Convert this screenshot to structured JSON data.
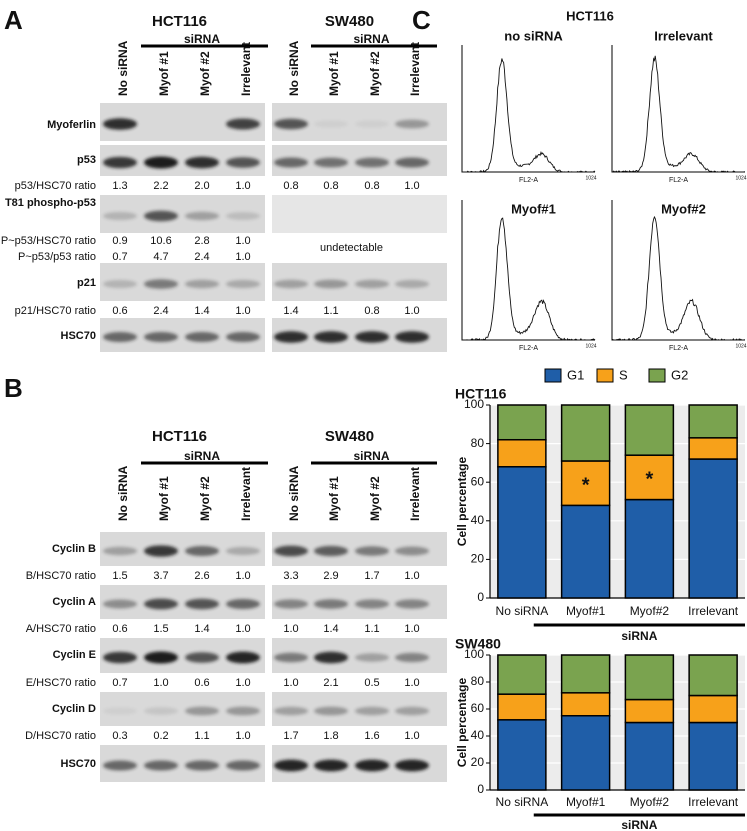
{
  "panel_a": {
    "letter": "A",
    "cell_lines": [
      "HCT116",
      "SW480"
    ],
    "group": "siRNA",
    "lanes": [
      "No siRNA",
      "Myof #1",
      "Myof #2",
      "Irrelevant"
    ],
    "blots": [
      "Myoferlin",
      "p53",
      "T81 phospho-p53",
      "p21",
      "HSC70"
    ],
    "ratios": [
      {
        "label": "p53/HSC70 ratio",
        "values": [
          [
            "1.3",
            "2.2",
            "2.0",
            "1.0"
          ],
          [
            "0.8",
            "0.8",
            "0.8",
            "1.0"
          ]
        ]
      },
      {
        "label": "P~p53/HSC70 ratio",
        "values": [
          [
            "0.9",
            "10.6",
            "2.8",
            "1.0"
          ]
        ],
        "note": "undetectable"
      },
      {
        "label": "P~p53/p53 ratio",
        "color": "#e8251f",
        "values": [
          [
            "0.7",
            "4.7",
            "2.4",
            "1.0"
          ]
        ]
      },
      {
        "label": "p21/HSC70 ratio",
        "values": [
          [
            "0.6",
            "2.4",
            "1.4",
            "1.0"
          ],
          [
            "1.4",
            "1.1",
            "0.8",
            "1.0"
          ]
        ]
      }
    ]
  },
  "panel_b": {
    "letter": "B",
    "cell_lines": [
      "HCT116",
      "SW480"
    ],
    "group": "siRNA",
    "lanes": [
      "No siRNA",
      "Myof #1",
      "Myof #2",
      "Irrelevant"
    ],
    "blots": [
      "Cyclin B",
      "Cyclin A",
      "Cyclin E",
      "Cyclin D",
      "HSC70"
    ],
    "ratios": [
      {
        "label": "B/HSC70 ratio",
        "values": [
          [
            "1.5",
            "3.7",
            "2.6",
            "1.0"
          ],
          [
            "3.3",
            "2.9",
            "1.7",
            "1.0"
          ]
        ]
      },
      {
        "label": "A/HSC70 ratio",
        "values": [
          [
            "0.6",
            "1.5",
            "1.4",
            "1.0"
          ],
          [
            "1.0",
            "1.4",
            "1.1",
            "1.0"
          ]
        ]
      },
      {
        "label": "E/HSC70 ratio",
        "values": [
          [
            "0.7",
            "1.0",
            "0.6",
            "1.0"
          ],
          [
            "1.0",
            "2.1",
            "0.5",
            "1.0"
          ]
        ]
      },
      {
        "label": "D/HSC70 ratio",
        "values": [
          [
            "0.3",
            "0.2",
            "1.1",
            "1.0"
          ],
          [
            "1.7",
            "1.8",
            "1.6",
            "1.0"
          ]
        ]
      }
    ]
  },
  "panel_c": {
    "letter": "C",
    "title": "HCT116",
    "plots": [
      "no siRNA",
      "Irrelevant",
      "Myof#1",
      "Myof#2"
    ],
    "xlabel": "FL2-A",
    "xmax": 1024
  },
  "chart_data": [
    {
      "type": "stacked-bar",
      "title": "HCT116",
      "ylabel": "Cell percentage",
      "group_label": "siRNA",
      "legend": "top",
      "categories": [
        "No siRNA",
        "Myof#1",
        "Myof#2",
        "Irrelevant"
      ],
      "series": [
        {
          "name": "G1",
          "color": "#1f5ea8",
          "values": [
            68,
            48,
            51,
            72
          ]
        },
        {
          "name": "S",
          "color": "#f7a11a",
          "values": [
            14,
            23,
            23,
            11
          ],
          "markers": [
            null,
            "*",
            "*",
            null
          ]
        },
        {
          "name": "G2",
          "color": "#7aa34f",
          "values": [
            18,
            29,
            26,
            17
          ]
        }
      ],
      "ylim": [
        0,
        100
      ],
      "yticks": [
        0,
        20,
        40,
        60,
        80,
        100
      ],
      "grid": true
    },
    {
      "type": "stacked-bar",
      "title": "SW480",
      "ylabel": "Cell percentage",
      "group_label": "siRNA",
      "categories": [
        "No siRNA",
        "Myof#1",
        "Myof#2",
        "Irrelevant"
      ],
      "series": [
        {
          "color": "#1f5ea8",
          "values": [
            52,
            55,
            50,
            50
          ]
        },
        {
          "color": "#f7a11a",
          "values": [
            19,
            17,
            17,
            20
          ]
        },
        {
          "color": "#7aa34f",
          "values": [
            29,
            28,
            33,
            30
          ]
        }
      ],
      "ylim": [
        0,
        100
      ],
      "yticks": [
        0,
        20,
        40,
        60,
        80,
        100
      ],
      "grid": true
    }
  ]
}
